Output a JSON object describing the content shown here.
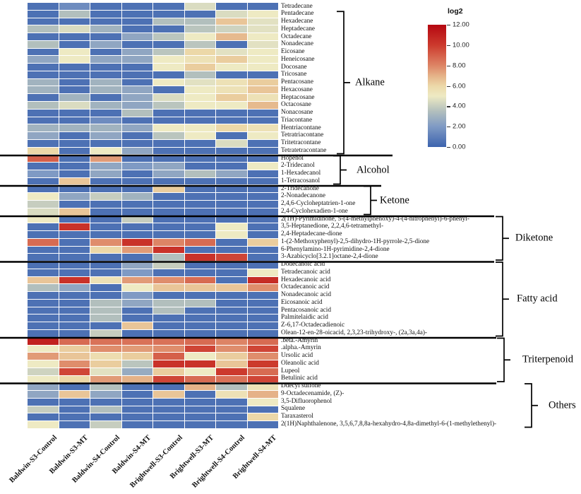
{
  "legend": {
    "title": "log2",
    "ticks": [
      "12.00",
      "10.00",
      "8.00",
      "6.00",
      "4.00",
      "2.00",
      "0.00"
    ]
  },
  "colors": {
    "grid_gap": "#ffffff",
    "separator_line": "#000000",
    "bracket": "#000000",
    "label_text": "#111111"
  },
  "colormap": [
    {
      "v": 0,
      "c": "#3c63ae"
    },
    {
      "v": 2,
      "c": "#7f9ac4"
    },
    {
      "v": 3.5,
      "c": "#b2bfbd"
    },
    {
      "v": 5,
      "c": "#eeeac3"
    },
    {
      "v": 6,
      "c": "#ecd8a8"
    },
    {
      "v": 7,
      "c": "#e5b288"
    },
    {
      "v": 8,
      "c": "#dd8465"
    },
    {
      "v": 9,
      "c": "#d5604a"
    },
    {
      "v": 10,
      "c": "#cc3a2d"
    },
    {
      "v": 12,
      "c": "#b50710"
    }
  ],
  "chart_data": {
    "type": "heatmap",
    "title": "",
    "colorbar_label": "log2",
    "vmin": 0,
    "vmax": 12,
    "legend_position": "top-right",
    "columns": [
      "Baldwin-S3-Control",
      "Baldwin-S3-MT",
      "Baldwin-S4-Control",
      "Baldwin-S4-MT",
      "Brightwell-S3-Control",
      "Brightwell-S3-MT",
      "Brightwell-S4-Control",
      "Brightwell-S4-MT"
    ],
    "groups": [
      {
        "name": "Alkane",
        "row_labels": [
          "Tetradecane",
          "Pentadecane",
          "Hexadecane",
          "Heptadecane",
          "Octadecane",
          "Nonadecane",
          "Eicosane",
          "Heneicosane",
          "Docosane",
          "Tricosane",
          "Pentacosane",
          "Hexacosane",
          "Heptacosane",
          "Octacosane",
          "Nonacosane",
          "Triacontane",
          "Hentriacontane",
          "Tetratriacontane",
          "Tritetracontane",
          "Tetratetracontane"
        ],
        "values": [
          [
            0.5,
            1.5,
            0.5,
            0.5,
            0.5,
            4.5,
            0.5,
            0.5
          ],
          [
            0.5,
            3.5,
            0.5,
            0.5,
            0.5,
            0.5,
            4.5,
            5.0
          ],
          [
            0.5,
            0.5,
            0.5,
            0.5,
            3.5,
            3.5,
            6.5,
            4.7
          ],
          [
            3.5,
            4.5,
            3.0,
            0.5,
            0.5,
            3.7,
            4.2,
            4.7
          ],
          [
            0.5,
            0.5,
            0.5,
            2.5,
            3.7,
            5.0,
            6.8,
            5.0
          ],
          [
            3.5,
            0.5,
            2.5,
            0.5,
            0.5,
            3.7,
            0.5,
            4.7
          ],
          [
            0.5,
            5.0,
            0.5,
            2.5,
            3.7,
            6.0,
            4.7,
            5.0
          ],
          [
            2.5,
            5.0,
            2.5,
            2.5,
            5.0,
            5.5,
            6.3,
            5.0
          ],
          [
            0.5,
            0.5,
            0.5,
            0.5,
            5.0,
            6.3,
            5.0,
            5.0
          ],
          [
            0.5,
            0.5,
            0.5,
            0.5,
            0.5,
            3.5,
            0.5,
            0.5
          ],
          [
            3.0,
            0.5,
            3.0,
            0.5,
            5.0,
            4.7,
            5.5,
            6.3
          ],
          [
            3.0,
            0.5,
            3.0,
            2.5,
            0.5,
            5.0,
            5.5,
            6.5
          ],
          [
            0.5,
            3.0,
            0.5,
            2.5,
            4.5,
            5.0,
            6.3,
            5.5
          ],
          [
            3.5,
            4.5,
            3.0,
            2.5,
            3.7,
            5.0,
            5.0,
            6.8
          ],
          [
            0.5,
            0.5,
            0.5,
            3.5,
            0.5,
            0.5,
            0.5,
            0.5
          ],
          [
            0.5,
            0.5,
            1.5,
            0.5,
            0.5,
            0.5,
            0.5,
            0.5
          ],
          [
            3.0,
            3.0,
            3.0,
            2.5,
            5.0,
            5.0,
            6.0,
            5.5
          ],
          [
            2.5,
            0.5,
            2.5,
            0.5,
            3.7,
            5.0,
            0.5,
            5.0
          ],
          [
            0.5,
            0.5,
            0.5,
            0.5,
            0.5,
            0.5,
            4.5,
            0.5
          ],
          [
            6.0,
            0.5,
            5.0,
            2.5,
            0.5,
            0.5,
            0.5,
            0.5
          ]
        ]
      },
      {
        "name": "Alcohol",
        "row_labels": [
          "Hopenol",
          "2-Tridecanol",
          "1-Hexadecanol",
          "1-Tetracosanol"
        ],
        "values": [
          [
            9.0,
            0.5,
            7.5,
            0.5,
            0.5,
            0.5,
            0.5,
            0.5
          ],
          [
            0.5,
            0.5,
            2.5,
            2.0,
            2.5,
            0.5,
            0.5,
            5.0
          ],
          [
            2.0,
            0.5,
            2.5,
            0.5,
            2.5,
            3.5,
            2.5,
            0.5
          ],
          [
            0.5,
            6.5,
            0.5,
            0.5,
            0.5,
            0.5,
            0.5,
            0.5
          ]
        ]
      },
      {
        "name": "Ketone",
        "row_labels": [
          "2-Tridecanone",
          "2-Nonadecanone",
          "2,4,6-Cycloheptatrien-1-one",
          "2,4-Cyclohexadien-1-one"
        ],
        "values": [
          [
            0.5,
            0.5,
            0.5,
            0.5,
            6.3,
            0.5,
            0.5,
            0.5
          ],
          [
            5.0,
            2.5,
            4.0,
            3.0,
            0.5,
            0.5,
            0.5,
            0.5
          ],
          [
            4.0,
            0.5,
            0.5,
            0.5,
            0.5,
            0.5,
            0.5,
            0.5
          ],
          [
            4.5,
            6.5,
            0.5,
            0.5,
            0.5,
            0.5,
            0.5,
            0.5
          ]
        ]
      },
      {
        "name": "Diketone",
        "row_labels": [
          "2(1H)-Pyrimidinone, 5-(4-methylphenoxy)-4-(4-nitrophenyl)-6-phenyl-",
          "3,5-Heptanedione, 2,2,4,6-tetramethyl-",
          "2,4-Heptadecane-dione",
          "1-(2-Methoxyphenyl)-2,5-dihydro-1H-pyrrole-2,5-dione",
          "6-Phenylamino-1H-pyrimidine-2,4-dione",
          "3-Azabicyclo[3.2.1]octane-2,4-dione"
        ],
        "values": [
          [
            5.0,
            0.5,
            0.5,
            4.0,
            0.5,
            0.5,
            0.5,
            0.5
          ],
          [
            0.5,
            10.3,
            0.5,
            0.5,
            0.5,
            0.5,
            5.0,
            0.5
          ],
          [
            0.5,
            0.5,
            0.5,
            0.5,
            0.5,
            0.5,
            5.0,
            0.5
          ],
          [
            8.7,
            0.5,
            7.8,
            10.3,
            8.0,
            8.7,
            0.5,
            6.3
          ],
          [
            0.5,
            0.5,
            6.0,
            7.5,
            10.3,
            0.5,
            0.5,
            0.5
          ],
          [
            0.5,
            0.5,
            0.5,
            0.5,
            3.5,
            10.3,
            9.7,
            0.5
          ]
        ]
      },
      {
        "name": "Fatty acid",
        "row_labels": [
          "Dodecanoic acid",
          "Tetradecanoic acid",
          "Hexadecanoic acid",
          "Octadecanoic acid",
          "Nonadecanoic acid",
          "Eicosanoic acid",
          "Pentacosanoic acid",
          "Palmitelaidic acid",
          "Z-6,17-Octadecadienoic",
          "Olean-12-en-28-oicacid, 2,3,23-trihydroxy-, (2a,3a,4a)-"
        ],
        "values": [
          [
            0.5,
            0.5,
            0.5,
            2.5,
            4.0,
            0.5,
            0.5,
            0.5
          ],
          [
            0.5,
            0.5,
            0.5,
            2.0,
            0.5,
            0.5,
            0.5,
            5.0
          ],
          [
            6.5,
            10.3,
            5.5,
            7.5,
            7.8,
            8.7,
            0.5,
            10.5
          ],
          [
            3.5,
            2.5,
            0.5,
            5.0,
            6.5,
            6.5,
            6.5,
            7.8
          ],
          [
            0.5,
            0.5,
            0.5,
            2.0,
            0.5,
            0.5,
            0.5,
            0.5
          ],
          [
            0.5,
            0.5,
            3.5,
            2.5,
            3.5,
            3.5,
            0.5,
            0.5
          ],
          [
            0.5,
            0.5,
            3.5,
            0.5,
            3.5,
            0.5,
            0.5,
            0.5
          ],
          [
            0.5,
            0.5,
            3.5,
            0.5,
            0.5,
            0.5,
            0.5,
            0.5
          ],
          [
            0.5,
            0.5,
            0.5,
            6.5,
            0.5,
            0.5,
            0.5,
            0.5
          ],
          [
            0.5,
            0.5,
            4.0,
            0.5,
            0.5,
            0.5,
            0.5,
            0.5
          ]
        ]
      },
      {
        "name": "Triterpenoid",
        "row_labels": [
          ".beta.-Amyrin",
          ".alpha.-Amyrin",
          "Ursolic acid",
          "Oleanolic acid",
          "Lupeol",
          "Betulinic acid"
        ],
        "values": [
          [
            11.0,
            8.7,
            8.5,
            8.5,
            8.5,
            8.7,
            8.0,
            8.7
          ],
          [
            5.0,
            6.3,
            7.8,
            7.5,
            7.8,
            9.7,
            7.8,
            9.7
          ],
          [
            7.5,
            6.5,
            5.7,
            6.3,
            9.0,
            5.0,
            6.3,
            7.8
          ],
          [
            5.0,
            7.8,
            6.3,
            3.7,
            10.3,
            10.3,
            6.5,
            10.0
          ],
          [
            4.2,
            9.7,
            4.7,
            2.7,
            6.3,
            5.0,
            10.0,
            8.7
          ],
          [
            5.0,
            6.0,
            7.5,
            7.0,
            9.7,
            8.7,
            8.5,
            9.7
          ]
        ]
      },
      {
        "name": "Others",
        "row_labels": [
          "Ddecyl sulfone",
          "9-Octadecenamide, (Z)-",
          "3,5-Difluorophenol",
          "Squalene",
          "Taraxasterol",
          "2(1H)Naphthalenone, 3,5,6,7,8,8a-hexahydro-4,8a-dimethyl-6-(1-methylethenyl)-"
        ],
        "values": [
          [
            2.5,
            0.5,
            3.5,
            0.5,
            0.5,
            7.0,
            3.5,
            5.5
          ],
          [
            2.5,
            6.5,
            2.5,
            0.5,
            6.5,
            0.5,
            5.5,
            7.0
          ],
          [
            0.5,
            0.5,
            0.5,
            0.5,
            0.5,
            0.5,
            0.5,
            5.0
          ],
          [
            4.0,
            0.5,
            3.5,
            0.5,
            0.5,
            0.5,
            0.5,
            0.5
          ],
          [
            0.5,
            0.5,
            0.5,
            0.5,
            0.5,
            0.5,
            0.5,
            6.0
          ],
          [
            5.0,
            0.5,
            4.0,
            0.5,
            0.5,
            0.5,
            0.5,
            0.5
          ]
        ]
      }
    ]
  }
}
